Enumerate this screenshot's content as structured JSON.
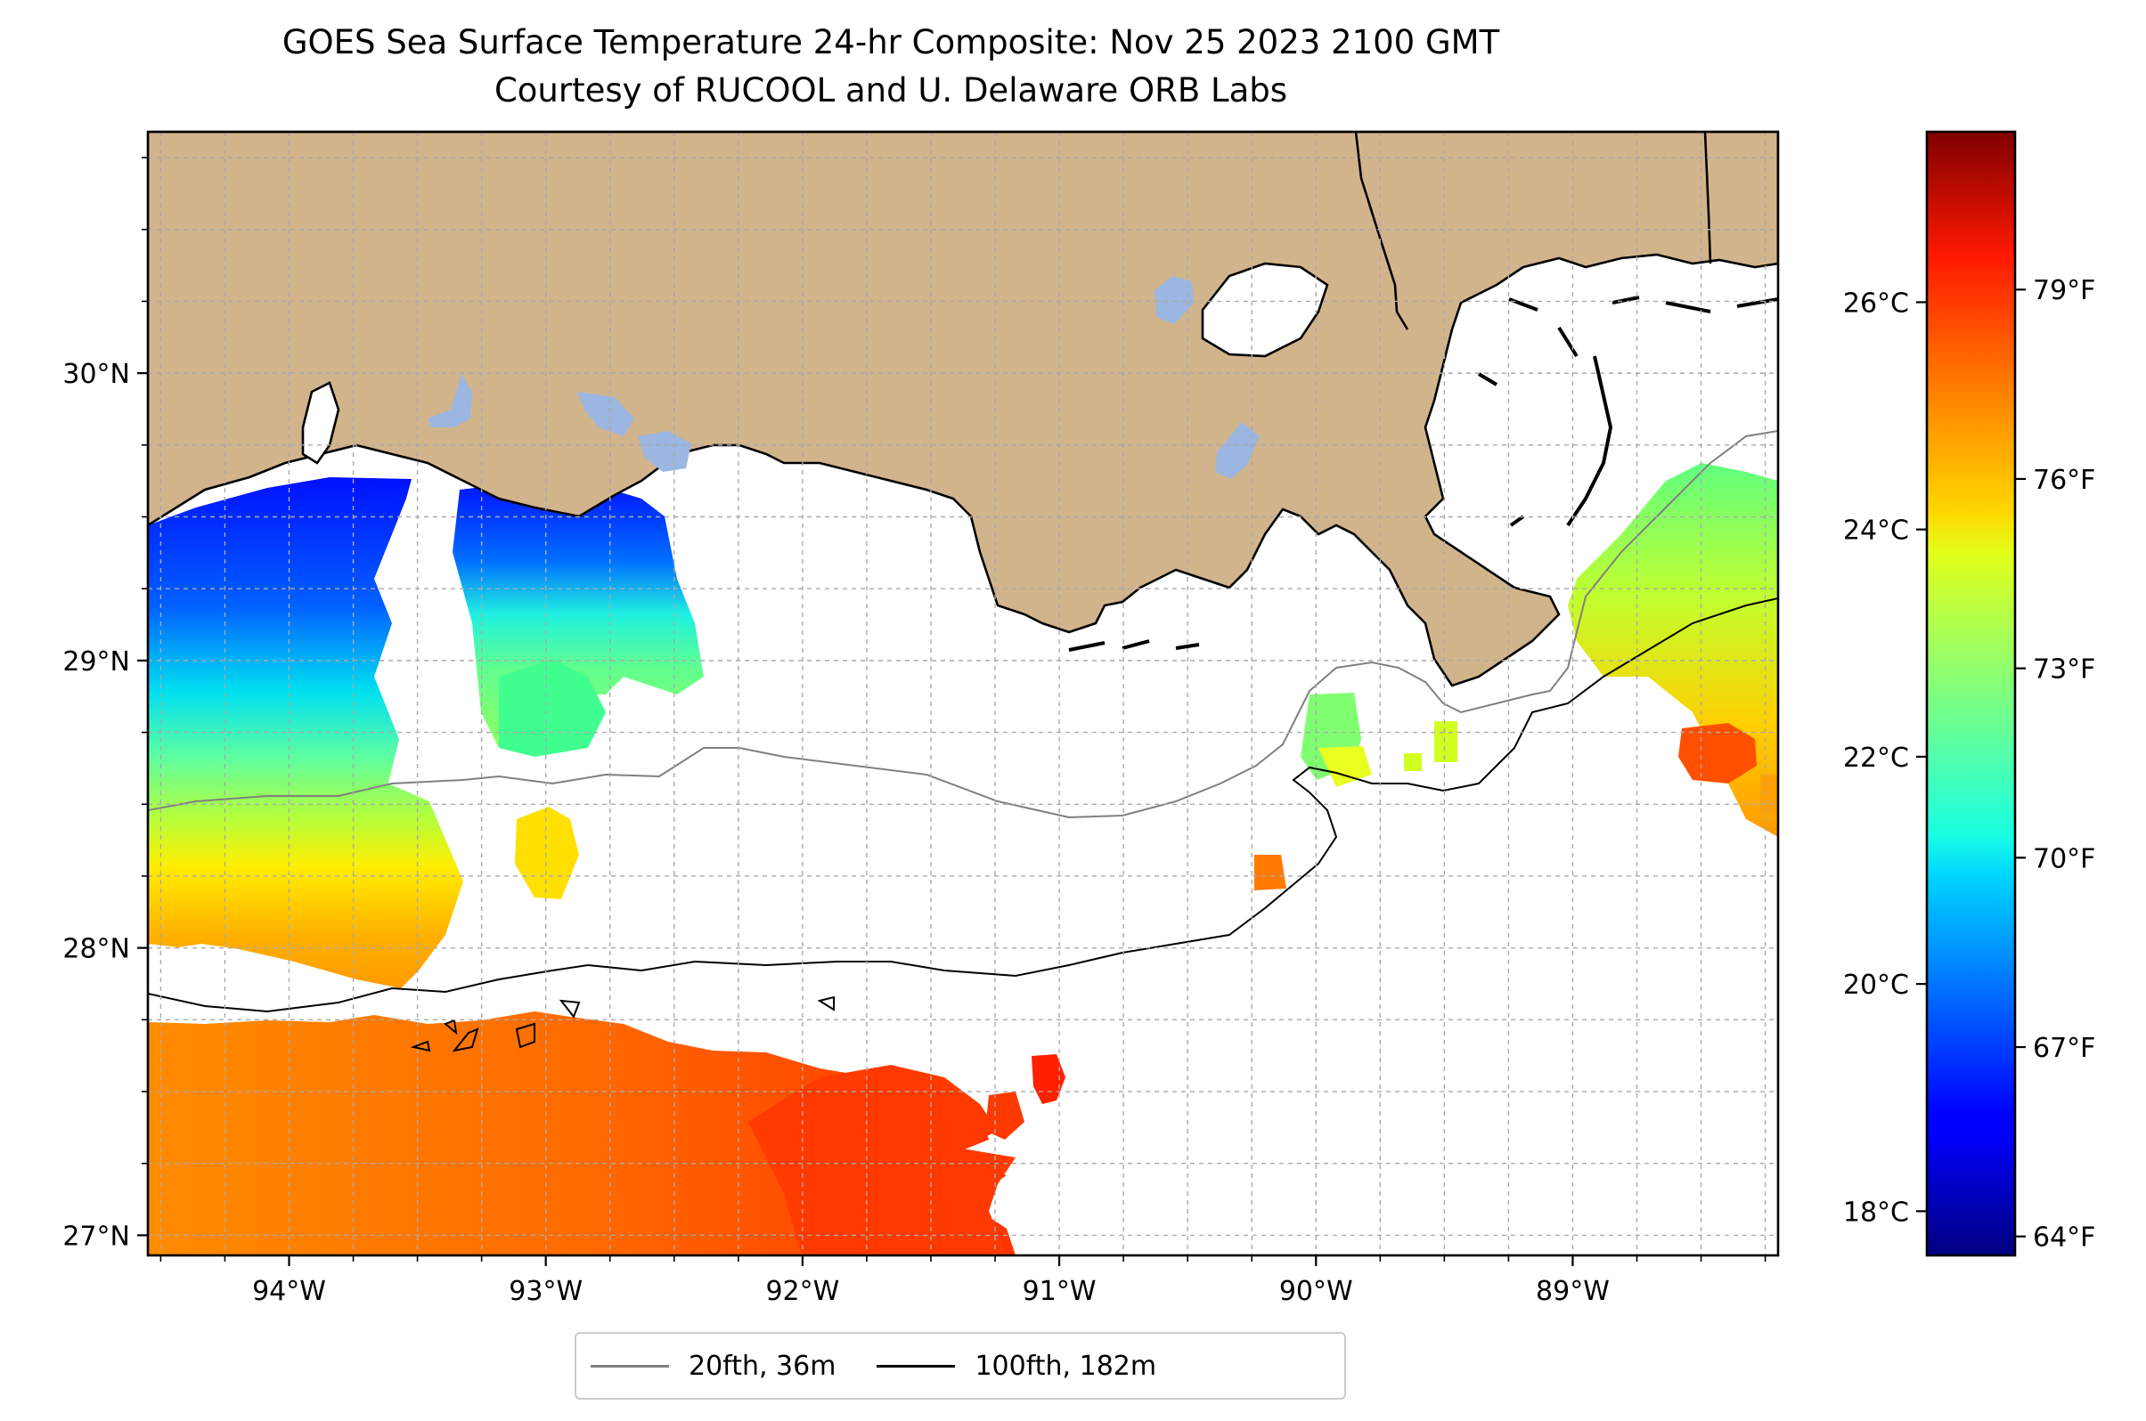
{
  "title": "GOES Sea Surface Temperature 24-hr Composite: Nov 25 2023 2100 GMT",
  "subtitle": "Courtesy of RUCOOL and U. Delaware ORB Labs",
  "map": {
    "lon_range": [
      -94.55,
      -88.2
    ],
    "lat_range": [
      26.93,
      30.84
    ],
    "lon_ticks": [
      {
        "value": -94,
        "label": "94°W"
      },
      {
        "value": -93,
        "label": "93°W"
      },
      {
        "value": -92,
        "label": "92°W"
      },
      {
        "value": -91,
        "label": "91°W"
      },
      {
        "value": -90,
        "label": "90°W"
      },
      {
        "value": -89,
        "label": "89°W"
      }
    ],
    "lat_ticks": [
      {
        "value": 30,
        "label": "30°N"
      },
      {
        "value": 29,
        "label": "29°N"
      },
      {
        "value": 28,
        "label": "28°N"
      },
      {
        "value": 27,
        "label": "27°N"
      }
    ],
    "grid": true,
    "land_color": "#d2b48c",
    "lake_color": "#9bb6e0"
  },
  "colorbar": {
    "colormap": "jet",
    "celsius_ticks": [
      {
        "value": 18,
        "label": "18°C"
      },
      {
        "value": 20,
        "label": "20°C"
      },
      {
        "value": 22,
        "label": "22°C"
      },
      {
        "value": 24,
        "label": "24°C"
      },
      {
        "value": 26,
        "label": "26°C"
      }
    ],
    "fahrenheit_ticks": [
      {
        "value": 64,
        "label": "64°F"
      },
      {
        "value": 67,
        "label": "67°F"
      },
      {
        "value": 70,
        "label": "70°F"
      },
      {
        "value": 73,
        "label": "73°F"
      },
      {
        "value": 76,
        "label": "76°F"
      },
      {
        "value": 79,
        "label": "79°F"
      }
    ],
    "range_f": [
      63.7,
      81.5
    ]
  },
  "legend": {
    "items": [
      {
        "label": "20fth, 36m",
        "color": "#808080"
      },
      {
        "label": "100fth, 182m",
        "color": "#000000"
      }
    ]
  }
}
